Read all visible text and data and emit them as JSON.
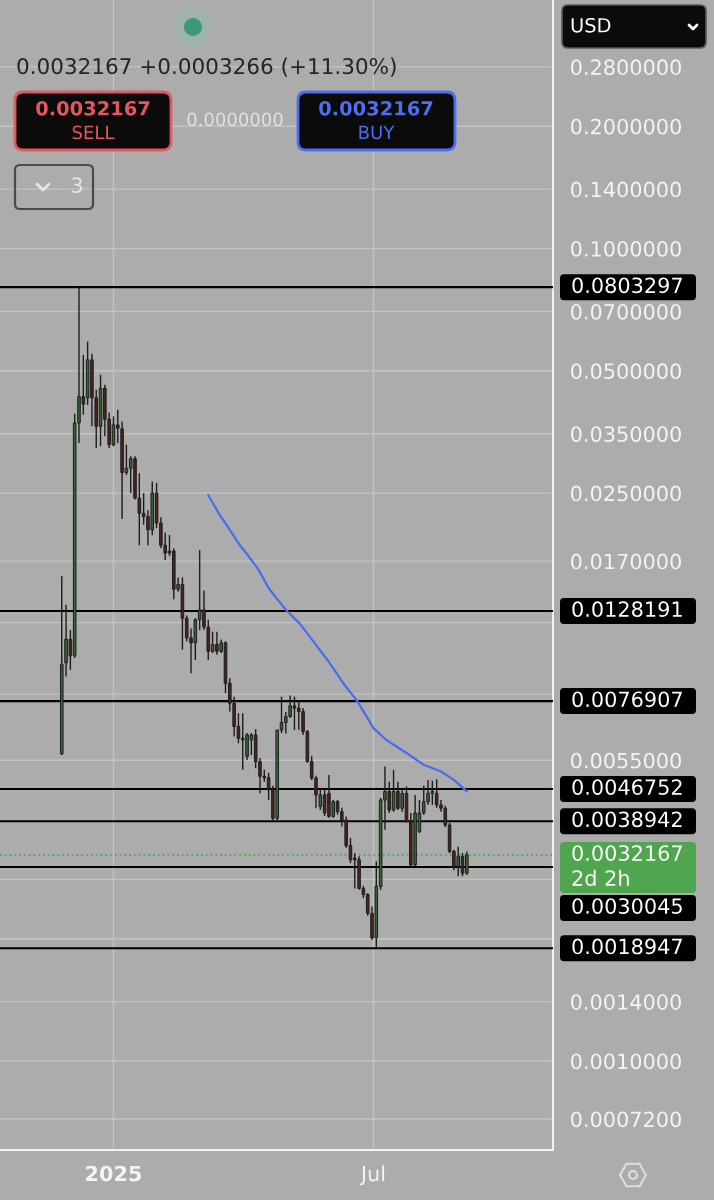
{
  "chart_data": {
    "type": "candlestick",
    "subtitle": "0.0032167 +0.0003266 (+11.30%)",
    "x": [
      "2024-11-26",
      "2024-11-29",
      "2024-12-02",
      "2024-12-05",
      "2024-12-08",
      "2024-12-11",
      "2024-12-14",
      "2024-12-17",
      "2024-12-20",
      "2024-12-23",
      "2024-12-26",
      "2024-12-29",
      "2025-01-01",
      "2025-01-04",
      "2025-01-07",
      "2025-01-10",
      "2025-01-13",
      "2025-01-16",
      "2025-01-19",
      "2025-01-22",
      "2025-01-25",
      "2025-01-28",
      "2025-01-31",
      "2025-02-03",
      "2025-02-06",
      "2025-02-09",
      "2025-02-12",
      "2025-02-15",
      "2025-02-18",
      "2025-02-21",
      "2025-02-24",
      "2025-02-27",
      "2025-03-02",
      "2025-03-05",
      "2025-03-08",
      "2025-03-11",
      "2025-03-14",
      "2025-03-17",
      "2025-03-20",
      "2025-03-23",
      "2025-03-26",
      "2025-03-29",
      "2025-04-01",
      "2025-04-04",
      "2025-04-07",
      "2025-04-10",
      "2025-04-13",
      "2025-04-16",
      "2025-04-19",
      "2025-04-22",
      "2025-04-25",
      "2025-04-28",
      "2025-05-01",
      "2025-05-04",
      "2025-05-07",
      "2025-05-10",
      "2025-05-13",
      "2025-05-16",
      "2025-05-19",
      "2025-05-22",
      "2025-05-25",
      "2025-05-28",
      "2025-05-31",
      "2025-06-03",
      "2025-06-06",
      "2025-06-09",
      "2025-06-12",
      "2025-06-15",
      "2025-06-18",
      "2025-06-21",
      "2025-06-24",
      "2025-06-27",
      "2025-06-30",
      "2025-07-03",
      "2025-07-06",
      "2025-07-09",
      "2025-07-12",
      "2025-07-15",
      "2025-07-18",
      "2025-07-21",
      "2025-07-24",
      "2025-07-27",
      "2025-07-30",
      "2025-08-02",
      "2025-08-05",
      "2025-08-08",
      "2025-08-11",
      "2025-08-14",
      "2025-08-17",
      "2025-08-20",
      "2025-08-23",
      "2025-08-26",
      "2025-08-29",
      "2025-09-01",
      "2025-09-04"
    ],
    "ohlc": [
      [
        0.0057,
        0.0156,
        0.00567,
        0.00948
      ],
      [
        0.00955,
        0.01328,
        0.00884,
        0.01092
      ],
      [
        0.01092,
        0.01151,
        0.00918,
        0.00994
      ],
      [
        0.00994,
        0.0392,
        0.00983,
        0.0372
      ],
      [
        0.0372,
        0.0803,
        0.0332,
        0.0432
      ],
      [
        0.0432,
        0.0547,
        0.039,
        0.0414
      ],
      [
        0.0429,
        0.059,
        0.0412,
        0.0532
      ],
      [
        0.0532,
        0.0551,
        0.0365,
        0.0429
      ],
      [
        0.0429,
        0.0449,
        0.0323,
        0.0365
      ],
      [
        0.0365,
        0.0489,
        0.0326,
        0.0453
      ],
      [
        0.0453,
        0.0462,
        0.0345,
        0.038
      ],
      [
        0.038,
        0.0395,
        0.0323,
        0.0329
      ],
      [
        0.0329,
        0.0386,
        0.0326,
        0.0368
      ],
      [
        0.0368,
        0.0401,
        0.0332,
        0.0361
      ],
      [
        0.036,
        0.0375,
        0.0216,
        0.0281
      ],
      [
        0.0281,
        0.0329,
        0.0277,
        0.0288
      ],
      [
        0.0288,
        0.0308,
        0.025,
        0.0304
      ],
      [
        0.0304,
        0.0308,
        0.0241,
        0.0243
      ],
      [
        0.0243,
        0.028,
        0.0186,
        0.0223
      ],
      [
        0.0223,
        0.025,
        0.0209,
        0.0219
      ],
      [
        0.0219,
        0.0227,
        0.0186,
        0.0203
      ],
      [
        0.0203,
        0.0267,
        0.0197,
        0.025
      ],
      [
        0.025,
        0.0265,
        0.0205,
        0.0211
      ],
      [
        0.0211,
        0.0218,
        0.0183,
        0.0186
      ],
      [
        0.0186,
        0.02,
        0.0171,
        0.0178
      ],
      [
        0.0178,
        0.0197,
        0.0175,
        0.018
      ],
      [
        0.018,
        0.0183,
        0.0137,
        0.0145
      ],
      [
        0.0145,
        0.0155,
        0.0143,
        0.0149
      ],
      [
        0.0149,
        0.0155,
        0.0103,
        0.0123
      ],
      [
        0.0123,
        0.0125,
        0.0108,
        0.011
      ],
      [
        0.011,
        0.0116,
        0.00901,
        0.0107
      ],
      [
        0.0107,
        0.0123,
        0.00971,
        0.0122
      ],
      [
        0.0122,
        0.0181,
        0.0115,
        0.0129
      ],
      [
        0.0129,
        0.0144,
        0.0115,
        0.0117
      ],
      [
        0.0117,
        0.0122,
        0.00971,
        0.0102
      ],
      [
        0.0102,
        0.0114,
        0.0101,
        0.0106
      ],
      [
        0.0106,
        0.0114,
        0.01,
        0.0102
      ],
      [
        0.0102,
        0.0109,
        0.0101,
        0.0107
      ],
      [
        0.0107,
        0.0108,
        0.00804,
        0.00851
      ],
      [
        0.00851,
        0.00876,
        0.00725,
        0.0076
      ],
      [
        0.0076,
        0.00788,
        0.00629,
        0.00666
      ],
      [
        0.00666,
        0.00718,
        0.00606,
        0.00623
      ],
      [
        0.00623,
        0.00718,
        0.00521,
        0.00617
      ],
      [
        0.00562,
        0.00642,
        0.00551,
        0.00635
      ],
      [
        0.00617,
        0.00642,
        0.00567,
        0.00635
      ],
      [
        0.00635,
        0.00656,
        0.00526,
        0.00546
      ],
      [
        0.00546,
        0.00557,
        0.00456,
        0.00502
      ],
      [
        0.00502,
        0.00521,
        0.00487,
        0.00498
      ],
      [
        0.00498,
        0.00512,
        0.00439,
        0.00465
      ],
      [
        0.00465,
        0.00476,
        0.00392,
        0.00396
      ],
      [
        0.00396,
        0.00653,
        0.00392,
        0.00653
      ],
      [
        0.00653,
        0.00789,
        0.00642,
        0.00681
      ],
      [
        0.00681,
        0.00723,
        0.0064,
        0.00705
      ],
      [
        0.00705,
        0.00794,
        0.00699,
        0.00749
      ],
      [
        0.00749,
        0.00789,
        0.00653,
        0.00739
      ],
      [
        0.00739,
        0.00774,
        0.00653,
        0.00725
      ],
      [
        0.00725,
        0.0074,
        0.00635,
        0.00647
      ],
      [
        0.00647,
        0.00653,
        0.00542,
        0.00546
      ],
      [
        0.00546,
        0.00564,
        0.00492,
        0.00497
      ],
      [
        0.00497,
        0.00504,
        0.00419,
        0.00452
      ],
      [
        0.00423,
        0.00465,
        0.00415,
        0.00452
      ],
      [
        0.00452,
        0.00465,
        0.00401,
        0.00408
      ],
      [
        0.00456,
        0.00506,
        0.00397,
        0.004
      ],
      [
        0.004,
        0.00439,
        0.00397,
        0.00435
      ],
      [
        0.00435,
        0.00439,
        0.00404,
        0.00411
      ],
      [
        0.00411,
        0.0042,
        0.00378,
        0.00392
      ],
      [
        0.00392,
        0.004,
        0.00335,
        0.00339
      ],
      [
        0.00339,
        0.00354,
        0.00307,
        0.00313
      ],
      [
        0.00316,
        0.00325,
        0.00266,
        0.00313
      ],
      [
        0.00313,
        0.00319,
        0.00264,
        0.00266
      ],
      [
        0.00266,
        0.0027,
        0.00252,
        0.00257
      ],
      [
        0.00257,
        0.00259,
        0.00228,
        0.00231
      ],
      [
        0.00231,
        0.0024,
        0.00199,
        0.00201
      ],
      [
        0.00201,
        0.0031,
        0.0019,
        0.00269
      ],
      [
        0.00269,
        0.00444,
        0.00264,
        0.00439
      ],
      [
        0.00439,
        0.00531,
        0.00371,
        0.00461
      ],
      [
        0.00461,
        0.00487,
        0.00408,
        0.00415
      ],
      [
        0.00415,
        0.00521,
        0.00411,
        0.00461
      ],
      [
        0.00461,
        0.00487,
        0.00415,
        0.00419
      ],
      [
        0.00419,
        0.00465,
        0.00411,
        0.00456
      ],
      [
        0.00456,
        0.00474,
        0.00386,
        0.00389
      ],
      [
        0.00389,
        0.00408,
        0.00301,
        0.00304
      ],
      [
        0.00304,
        0.00452,
        0.00302,
        0.00408
      ],
      [
        0.00367,
        0.00439,
        0.00364,
        0.00408
      ],
      [
        0.00408,
        0.00476,
        0.00404,
        0.00435
      ],
      [
        0.00435,
        0.00492,
        0.00427,
        0.00456
      ],
      [
        0.00456,
        0.0049,
        0.00427,
        0.00461
      ],
      [
        0.00456,
        0.00494,
        0.0042,
        0.00427
      ],
      [
        0.00427,
        0.00439,
        0.00411,
        0.00419
      ],
      [
        0.00419,
        0.00425,
        0.00377,
        0.00381
      ],
      [
        0.00381,
        0.00386,
        0.00325,
        0.00328
      ],
      [
        0.00328,
        0.00331,
        0.00295,
        0.00301
      ],
      [
        0.00301,
        0.00337,
        0.00285,
        0.00319
      ],
      [
        0.00319,
        0.00325,
        0.00285,
        0.0029
      ],
      [
        0.0029,
        0.00328,
        0.00287,
        0.0032167
      ]
    ],
    "colors": [
      "#336633",
      "#336633",
      "#4d2222",
      "#336633",
      "#336633",
      "#4d2222",
      "#336633",
      "#4d2222",
      "#4d2222",
      "#336633",
      "#4d2222",
      "#4d2222",
      "#336633",
      "#4d2222",
      "#4d2222",
      "#336633",
      "#336633",
      "#4d2222",
      "#4d2222",
      "#4d2222",
      "#4d2222",
      "#336633",
      "#4d2222",
      "#4d2222",
      "#4d2222",
      "#336633",
      "#4d2222",
      "#336633",
      "#4d2222",
      "#4d2222",
      "#4d2222",
      "#336633",
      "#336633",
      "#4d2222",
      "#4d2222",
      "#336633",
      "#4d2222",
      "#336633",
      "#4d2222",
      "#4d2222",
      "#4d2222",
      "#4d2222",
      "#4d2222",
      "#336633",
      "#336633",
      "#4d2222",
      "#4d2222",
      "#4d2222",
      "#4d2222",
      "#4d2222",
      "#336633",
      "#336633",
      "#336633",
      "#336633",
      "#4d2222",
      "#4d2222",
      "#4d2222",
      "#4d2222",
      "#4d2222",
      "#4d2222",
      "#336633",
      "#4d2222",
      "#4d2222",
      "#336633",
      "#4d2222",
      "#4d2222",
      "#4d2222",
      "#4d2222",
      "#4d2222",
      "#4d2222",
      "#4d2222",
      "#4d2222",
      "#4d2222",
      "#336633",
      "#336633",
      "#336633",
      "#4d2222",
      "#336633",
      "#4d2222",
      "#336633",
      "#4d2222",
      "#4d2222",
      "#336633",
      "#336633",
      "#336633",
      "#336633",
      "#336633",
      "#4d2222",
      "#4d2222",
      "#4d2222",
      "#4d2222",
      "#4d2222",
      "#336633",
      "#4d2222",
      "#336633"
    ],
    "series": [
      {
        "type": "line",
        "color": "#4a6cf0",
        "x": [
          "2025-03-08",
          "2025-03-16",
          "2025-03-23",
          "2025-03-30",
          "2025-04-05",
          "2025-04-12",
          "2025-04-19",
          "2025-04-25",
          "2025-05-02",
          "2025-05-11",
          "2025-05-20",
          "2025-05-30",
          "2025-06-10",
          "2025-06-20",
          "2025-07-01",
          "2025-07-10",
          "2025-07-24",
          "2025-08-05",
          "2025-08-17",
          "2025-08-26",
          "2025-09-04"
        ],
        "values": [
          0.0247,
          0.0221,
          0.0203,
          0.0186,
          0.0175,
          0.0162,
          0.0146,
          0.0137,
          0.0128,
          0.0119,
          0.0108,
          0.00971,
          0.00851,
          0.00767,
          0.0066,
          0.00617,
          0.00573,
          0.00536,
          0.00516,
          0.00492,
          0.00461
        ]
      }
    ],
    "log": true,
    "xlim": [
      "2024-10-14",
      "2025-11-03"
    ],
    "xticks": [
      {
        "value": "2025-01-01",
        "label": "2025"
      },
      {
        "value": "2025-07-01",
        "label": "Jul"
      }
    ],
    "ylim": [
      0.000604,
      0.409
    ],
    "yticks": [
      {
        "value": 0.28,
        "label": "0.2800000"
      },
      {
        "value": 0.2,
        "label": "0.2000000"
      },
      {
        "value": 0.14,
        "label": "0.1400000"
      },
      {
        "value": 0.1,
        "label": "0.1000000"
      },
      {
        "value": 0.07,
        "label": "0.0700000"
      },
      {
        "value": 0.05,
        "label": "0.0500000"
      },
      {
        "value": 0.035,
        "label": "0.0350000"
      },
      {
        "value": 0.025,
        "label": "0.0250000"
      },
      {
        "value": 0.017,
        "label": "0.0170000"
      },
      {
        "value": 0.012,
        "label": null
      },
      {
        "value": 0.008,
        "label": null
      },
      {
        "value": 0.0055,
        "label": "0.0055000"
      },
      {
        "value": 0.0028,
        "label": null
      },
      {
        "value": 0.002,
        "label": null
      },
      {
        "value": 0.0014,
        "label": "0.0014000"
      },
      {
        "value": 0.001,
        "label": "0.0010000"
      },
      {
        "value": 0.00072,
        "label": "0.0007200"
      }
    ],
    "grid": true,
    "ref_lines": [
      {
        "axis": "y",
        "value": 0.0803297,
        "label": "0.0803297",
        "color": "#000000"
      },
      {
        "axis": "y",
        "value": 0.0128191,
        "label": "0.0128191",
        "color": "#000000"
      },
      {
        "axis": "y",
        "value": 0.0076907,
        "label": "0.0076907",
        "color": "#000000"
      },
      {
        "axis": "y",
        "value": 0.0046752,
        "label": "0.0046752",
        "color": "#000000"
      },
      {
        "axis": "y",
        "value": 0.0038942,
        "label": "0.0038942",
        "color": "#000000"
      },
      {
        "axis": "y",
        "value": 0.0032167,
        "label": "0.0032167\n2d 2h",
        "color": "#4fa64f",
        "line_style": "dotted"
      },
      {
        "axis": "y",
        "value": 0.0030045,
        "label": "0.0030045",
        "color": "#000000"
      },
      {
        "axis": "y",
        "value": 0.0018947,
        "label": "0.0018947",
        "color": "#000000"
      }
    ],
    "annotations": [
      "0.0032167",
      "SELL",
      "0.0000000",
      "0.0032167",
      "BUY",
      "3",
      "USD"
    ]
  }
}
